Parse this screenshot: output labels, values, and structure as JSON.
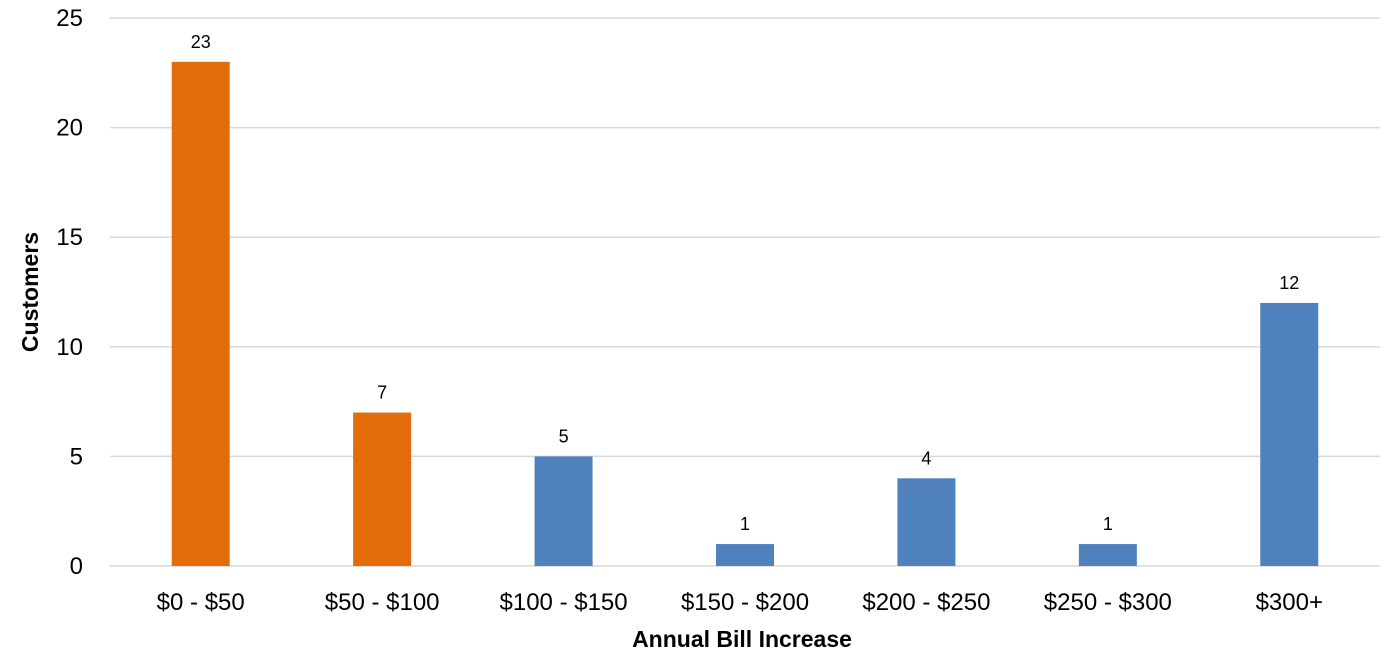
{
  "chart_data": {
    "type": "bar",
    "title": "",
    "xlabel": "Annual Bill Increase",
    "ylabel": "Customers",
    "categories": [
      "$0 - $50",
      "$50 - $100",
      "$100 - $150",
      "$150 - $200",
      "$200 - $250",
      "$250 - $300",
      "$300+"
    ],
    "values": [
      23,
      7,
      5,
      1,
      4,
      1,
      12
    ],
    "data_labels": [
      "23",
      "7",
      "5",
      "1",
      "4",
      "1",
      "12"
    ],
    "bar_colors": [
      "#e36c0a",
      "#e36c0a",
      "#4f81bd",
      "#4f81bd",
      "#4f81bd",
      "#4f81bd",
      "#4f81bd"
    ],
    "ylim": [
      0,
      25
    ],
    "yticks": [
      0,
      5,
      10,
      15,
      20,
      25
    ],
    "ytick_labels": [
      "0",
      "5",
      "10",
      "15",
      "20",
      "25"
    ],
    "grid": true,
    "legend": "none"
  }
}
